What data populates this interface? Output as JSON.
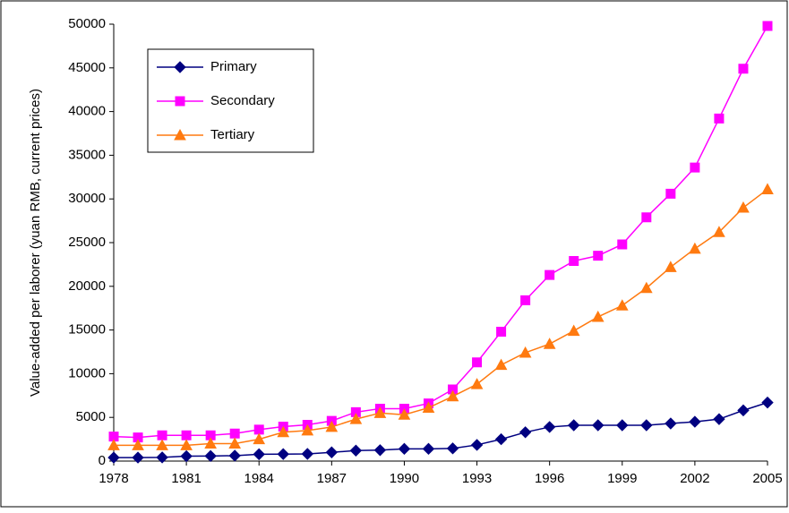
{
  "chart_data": {
    "type": "line",
    "y_label": "Value-added per laborer (yuan RMB, current prices)",
    "x": [
      1978,
      1979,
      1980,
      1981,
      1982,
      1983,
      1984,
      1985,
      1986,
      1987,
      1988,
      1989,
      1990,
      1991,
      1992,
      1993,
      1994,
      1995,
      1996,
      1997,
      1998,
      1999,
      2000,
      2001,
      2002,
      2003,
      2004,
      2005
    ],
    "series": [
      {
        "name": "Primary",
        "color": "#000080",
        "marker": "diamond",
        "values": [
          400,
          400,
          420,
          560,
          580,
          620,
          780,
          800,
          820,
          1000,
          1200,
          1250,
          1400,
          1400,
          1450,
          1850,
          2500,
          3300,
          3900,
          4100,
          4100,
          4100,
          4100,
          4300,
          4500,
          4800,
          5800,
          6700
        ]
      },
      {
        "name": "Secondary",
        "color": "#ff00ff",
        "marker": "square",
        "values": [
          2800,
          2700,
          2950,
          2950,
          2950,
          3150,
          3600,
          3950,
          4150,
          4600,
          5600,
          6000,
          6000,
          6600,
          8200,
          11300,
          14800,
          18400,
          21300,
          22900,
          23500,
          24800,
          27900,
          30600,
          33600,
          39200,
          44900,
          49800
        ]
      },
      {
        "name": "Tertiary",
        "color": "#ff7a10",
        "marker": "triangle",
        "values": [
          1800,
          1800,
          1800,
          1800,
          2000,
          2000,
          2500,
          3300,
          3500,
          3900,
          4800,
          5500,
          5300,
          6100,
          7400,
          8800,
          11000,
          12400,
          13400,
          14900,
          16500,
          17800,
          19800,
          22200,
          24300,
          26200,
          29000,
          31100
        ]
      }
    ],
    "xlim": [
      1978,
      2005
    ],
    "xticks": [
      1978,
      1981,
      1984,
      1987,
      1990,
      1993,
      1996,
      1999,
      2002,
      2005
    ],
    "ylim": [
      0,
      50000
    ],
    "yticks": [
      0,
      5000,
      10000,
      15000,
      20000,
      25000,
      30000,
      35000,
      40000,
      45000,
      50000
    ],
    "grid": false,
    "legend": "upper-left"
  }
}
